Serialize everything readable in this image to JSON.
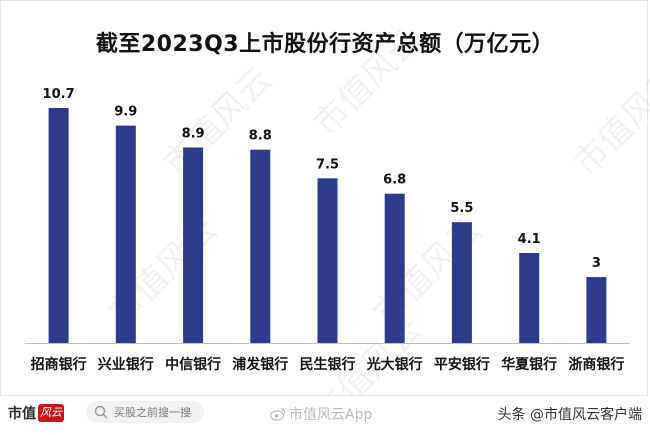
{
  "chart_data": {
    "type": "bar",
    "title": "截至2023Q3上市股份行资产总额（万亿元）",
    "categories": [
      "招商银行",
      "兴业银行",
      "中信银行",
      "浦发银行",
      "民生银行",
      "光大银行",
      "平安银行",
      "华夏银行",
      "浙商银行"
    ],
    "values": [
      10.7,
      9.9,
      8.9,
      8.8,
      7.5,
      6.8,
      5.5,
      4.1,
      3
    ],
    "value_labels": [
      "10.7",
      "9.9",
      "8.9",
      "8.8",
      "7.5",
      "6.8",
      "5.5",
      "4.1",
      "3"
    ],
    "ylim": [
      0,
      10.7
    ],
    "grid": false,
    "bar_color": "#2e3a8c",
    "axis_color": "#bfbfbf"
  },
  "watermark": {
    "text": "市值风云"
  },
  "footer": {
    "logo_text": "市值",
    "logo_stamp": "风云",
    "search_text": "买股之前搜一搜",
    "weibo_text": "市值风云App",
    "toutiao_text": "头条 @市值风云客户端"
  },
  "icons": {
    "search": "search-icon",
    "weibo": "weibo-icon"
  }
}
